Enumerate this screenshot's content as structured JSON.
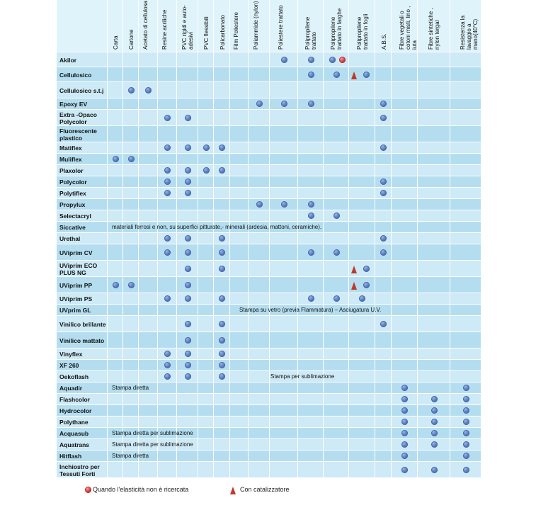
{
  "columns": [
    "Carta",
    "Cartone",
    "Acetato di cellulosa",
    "Resine acriliche",
    "PVC rigidi e auto-adesivi",
    "PVC flessibili",
    "Policarbonato",
    "Film Poliestere",
    "Poliammide (nylon)",
    "Poliestere trattato",
    "Polipropilene trattato",
    "Polipropilene trattato in farghe",
    "Polipropilene trattato in fogli",
    "A.B.S.",
    "Fibre vegetali o cotoni misti, lino , iuta",
    "Fibre sintetiche , nylon tergal",
    "Resistenza la lavaggio a mano(40°C)"
  ],
  "rows": [
    {
      "name": "Akilor",
      "marks": [
        {
          "col": 9,
          "t": "b"
        },
        {
          "col": 10,
          "t": "b"
        },
        {
          "col": 11,
          "t": "b"
        },
        {
          "col": 11,
          "t": "r"
        }
      ]
    },
    {
      "name": "Cellulosico",
      "marks": [
        {
          "col": 10,
          "t": "b"
        },
        {
          "col": 11,
          "t": "b"
        },
        {
          "col": 12,
          "t": "tri"
        },
        {
          "col": 12,
          "t": "b"
        }
      ]
    },
    {
      "name": "Cellulosico s.t.j",
      "marks": [
        {
          "col": 1,
          "t": "b"
        },
        {
          "col": 2,
          "t": "b"
        }
      ]
    },
    {
      "name": "Epoxy EV",
      "marks": [
        {
          "col": 8,
          "t": "b"
        },
        {
          "col": 9,
          "t": "b"
        },
        {
          "col": 10,
          "t": "b"
        },
        {
          "col": 13,
          "t": "b"
        }
      ]
    },
    {
      "name": "Extra -Opaco Polycolor",
      "marks": [
        {
          "col": 3,
          "t": "b"
        },
        {
          "col": 4,
          "t": "b"
        },
        {
          "col": 13,
          "t": "b"
        }
      ]
    },
    {
      "name": "Fluorescente plastico",
      "marks": []
    },
    {
      "name": "Matiflex",
      "marks": [
        {
          "col": 3,
          "t": "b"
        },
        {
          "col": 4,
          "t": "b"
        },
        {
          "col": 5,
          "t": "b"
        },
        {
          "col": 6,
          "t": "b"
        },
        {
          "col": 13,
          "t": "b"
        }
      ]
    },
    {
      "name": "Muliflex",
      "marks": [
        {
          "col": 0,
          "t": "b"
        },
        {
          "col": 1,
          "t": "b"
        }
      ]
    },
    {
      "name": "Plaxolor",
      "marks": [
        {
          "col": 3,
          "t": "b"
        },
        {
          "col": 4,
          "t": "b"
        },
        {
          "col": 5,
          "t": "b"
        },
        {
          "col": 6,
          "t": "b"
        }
      ]
    },
    {
      "name": "Polycolor",
      "marks": [
        {
          "col": 3,
          "t": "b"
        },
        {
          "col": 4,
          "t": "b"
        },
        {
          "col": 13,
          "t": "b"
        }
      ]
    },
    {
      "name": "Polytiflex",
      "marks": [
        {
          "col": 3,
          "t": "b"
        },
        {
          "col": 4,
          "t": "b"
        },
        {
          "col": 13,
          "t": "b"
        }
      ]
    },
    {
      "name": "Propylux",
      "marks": [
        {
          "col": 8,
          "t": "b"
        },
        {
          "col": 9,
          "t": "b"
        },
        {
          "col": 10,
          "t": "b"
        }
      ]
    },
    {
      "name": "Selectacryl",
      "marks": [
        {
          "col": 10,
          "t": "b"
        },
        {
          "col": 11,
          "t": "b"
        }
      ]
    },
    {
      "name": "Siccative",
      "note": "materiali ferrosi e non, su superfici pitturate,- minerali (ardesia, mattoni, ceramiche).",
      "marks": []
    },
    {
      "name": "Urethal",
      "marks": [
        {
          "col": 3,
          "t": "b"
        },
        {
          "col": 4,
          "t": "b"
        },
        {
          "col": 6,
          "t": "b"
        },
        {
          "col": 13,
          "t": "b"
        }
      ]
    },
    {
      "name": "UViprim CV",
      "marks": [
        {
          "col": 3,
          "t": "b"
        },
        {
          "col": 4,
          "t": "b"
        },
        {
          "col": 6,
          "t": "b"
        },
        {
          "col": 10,
          "t": "b"
        },
        {
          "col": 11,
          "t": "b"
        },
        {
          "col": 13,
          "t": "b"
        }
      ]
    },
    {
      "name": "UViprim ECO PLUS NG",
      "marks": [
        {
          "col": 4,
          "t": "b"
        },
        {
          "col": 6,
          "t": "b"
        },
        {
          "col": 12,
          "t": "tri"
        },
        {
          "col": 12,
          "t": "b"
        }
      ]
    },
    {
      "name": "UViprim PP",
      "marks": [
        {
          "col": 0,
          "t": "b"
        },
        {
          "col": 1,
          "t": "b"
        },
        {
          "col": 4,
          "t": "b"
        },
        {
          "col": 12,
          "t": "tri"
        },
        {
          "col": 12,
          "t": "b"
        }
      ]
    },
    {
      "name": "UViprim PS",
      "marks": [
        {
          "col": 3,
          "t": "b"
        },
        {
          "col": 4,
          "t": "b"
        },
        {
          "col": 6,
          "t": "b"
        },
        {
          "col": 10,
          "t": "b"
        },
        {
          "col": 11,
          "t": "b"
        },
        {
          "col": 12,
          "t": "b"
        }
      ]
    },
    {
      "name": "UVprim GL",
      "note": "Stampa su vetro (previa Flammatura) – Asciugatura U.V.",
      "marks": []
    },
    {
      "name": "Vinilico brillante",
      "marks": [
        {
          "col": 4,
          "t": "b"
        },
        {
          "col": 6,
          "t": "b"
        },
        {
          "col": 13,
          "t": "b"
        }
      ]
    },
    {
      "name": "Vinilico mattato",
      "marks": [
        {
          "col": 4,
          "t": "b"
        },
        {
          "col": 6,
          "t": "b"
        }
      ]
    },
    {
      "name": "Vinyflex",
      "marks": [
        {
          "col": 3,
          "t": "b"
        },
        {
          "col": 4,
          "t": "b"
        },
        {
          "col": 6,
          "t": "b"
        }
      ]
    },
    {
      "name": "XF 260",
      "marks": [
        {
          "col": 3,
          "t": "b"
        },
        {
          "col": 4,
          "t": "b"
        },
        {
          "col": 6,
          "t": "b"
        }
      ]
    },
    {
      "name": "Oekoflash",
      "note": "Stampa per sublimazione",
      "marks": [
        {
          "col": 3,
          "t": "b"
        },
        {
          "col": 4,
          "t": "b"
        },
        {
          "col": 6,
          "t": "b"
        }
      ]
    },
    {
      "name": "Aquadir",
      "note": "Stampa diretta",
      "marks": [
        {
          "col": 14,
          "t": "b"
        },
        {
          "col": 16,
          "t": "b"
        }
      ]
    },
    {
      "name": "Flashcolor",
      "marks": [
        {
          "col": 14,
          "t": "b"
        },
        {
          "col": 15,
          "t": "b"
        },
        {
          "col": 16,
          "t": "b"
        }
      ]
    },
    {
      "name": "Hydrocolor",
      "marks": [
        {
          "col": 14,
          "t": "b"
        },
        {
          "col": 15,
          "t": "b"
        },
        {
          "col": 16,
          "t": "b"
        }
      ]
    },
    {
      "name": "Polythane",
      "marks": [
        {
          "col": 14,
          "t": "b"
        },
        {
          "col": 15,
          "t": "b"
        },
        {
          "col": 16,
          "t": "b"
        }
      ]
    },
    {
      "name": "Acquasub",
      "note": "Stampa diretta per sublimazione",
      "marks": [
        {
          "col": 14,
          "t": "b"
        },
        {
          "col": 15,
          "t": "b"
        },
        {
          "col": 16,
          "t": "b"
        }
      ]
    },
    {
      "name": "Aquatrans",
      "note": "Stampa diretta per sublimazione",
      "marks": [
        {
          "col": 14,
          "t": "b"
        },
        {
          "col": 15,
          "t": "b"
        },
        {
          "col": 16,
          "t": "b"
        }
      ]
    },
    {
      "name": "Hitflash",
      "note": "Stampa diretta",
      "marks": [
        {
          "col": 14,
          "t": "b"
        },
        {
          "col": 16,
          "t": "b"
        }
      ]
    },
    {
      "name": "Inchiostro per Tessuti Forti",
      "marks": [
        {
          "col": 14,
          "t": "b"
        },
        {
          "col": 15,
          "t": "b"
        },
        {
          "col": 16,
          "t": "b"
        }
      ]
    }
  ],
  "legend": {
    "red_dot": "Quando l'elasticità non è ricercata",
    "triangle": "Con catalizzatore"
  },
  "colors": {
    "row_a": "#cdeaf6",
    "row_b": "#b4def0",
    "header": "#dff3fa",
    "dot": "#5d82c4",
    "red_dot": "#d34242",
    "triangle": "#c0392b"
  }
}
